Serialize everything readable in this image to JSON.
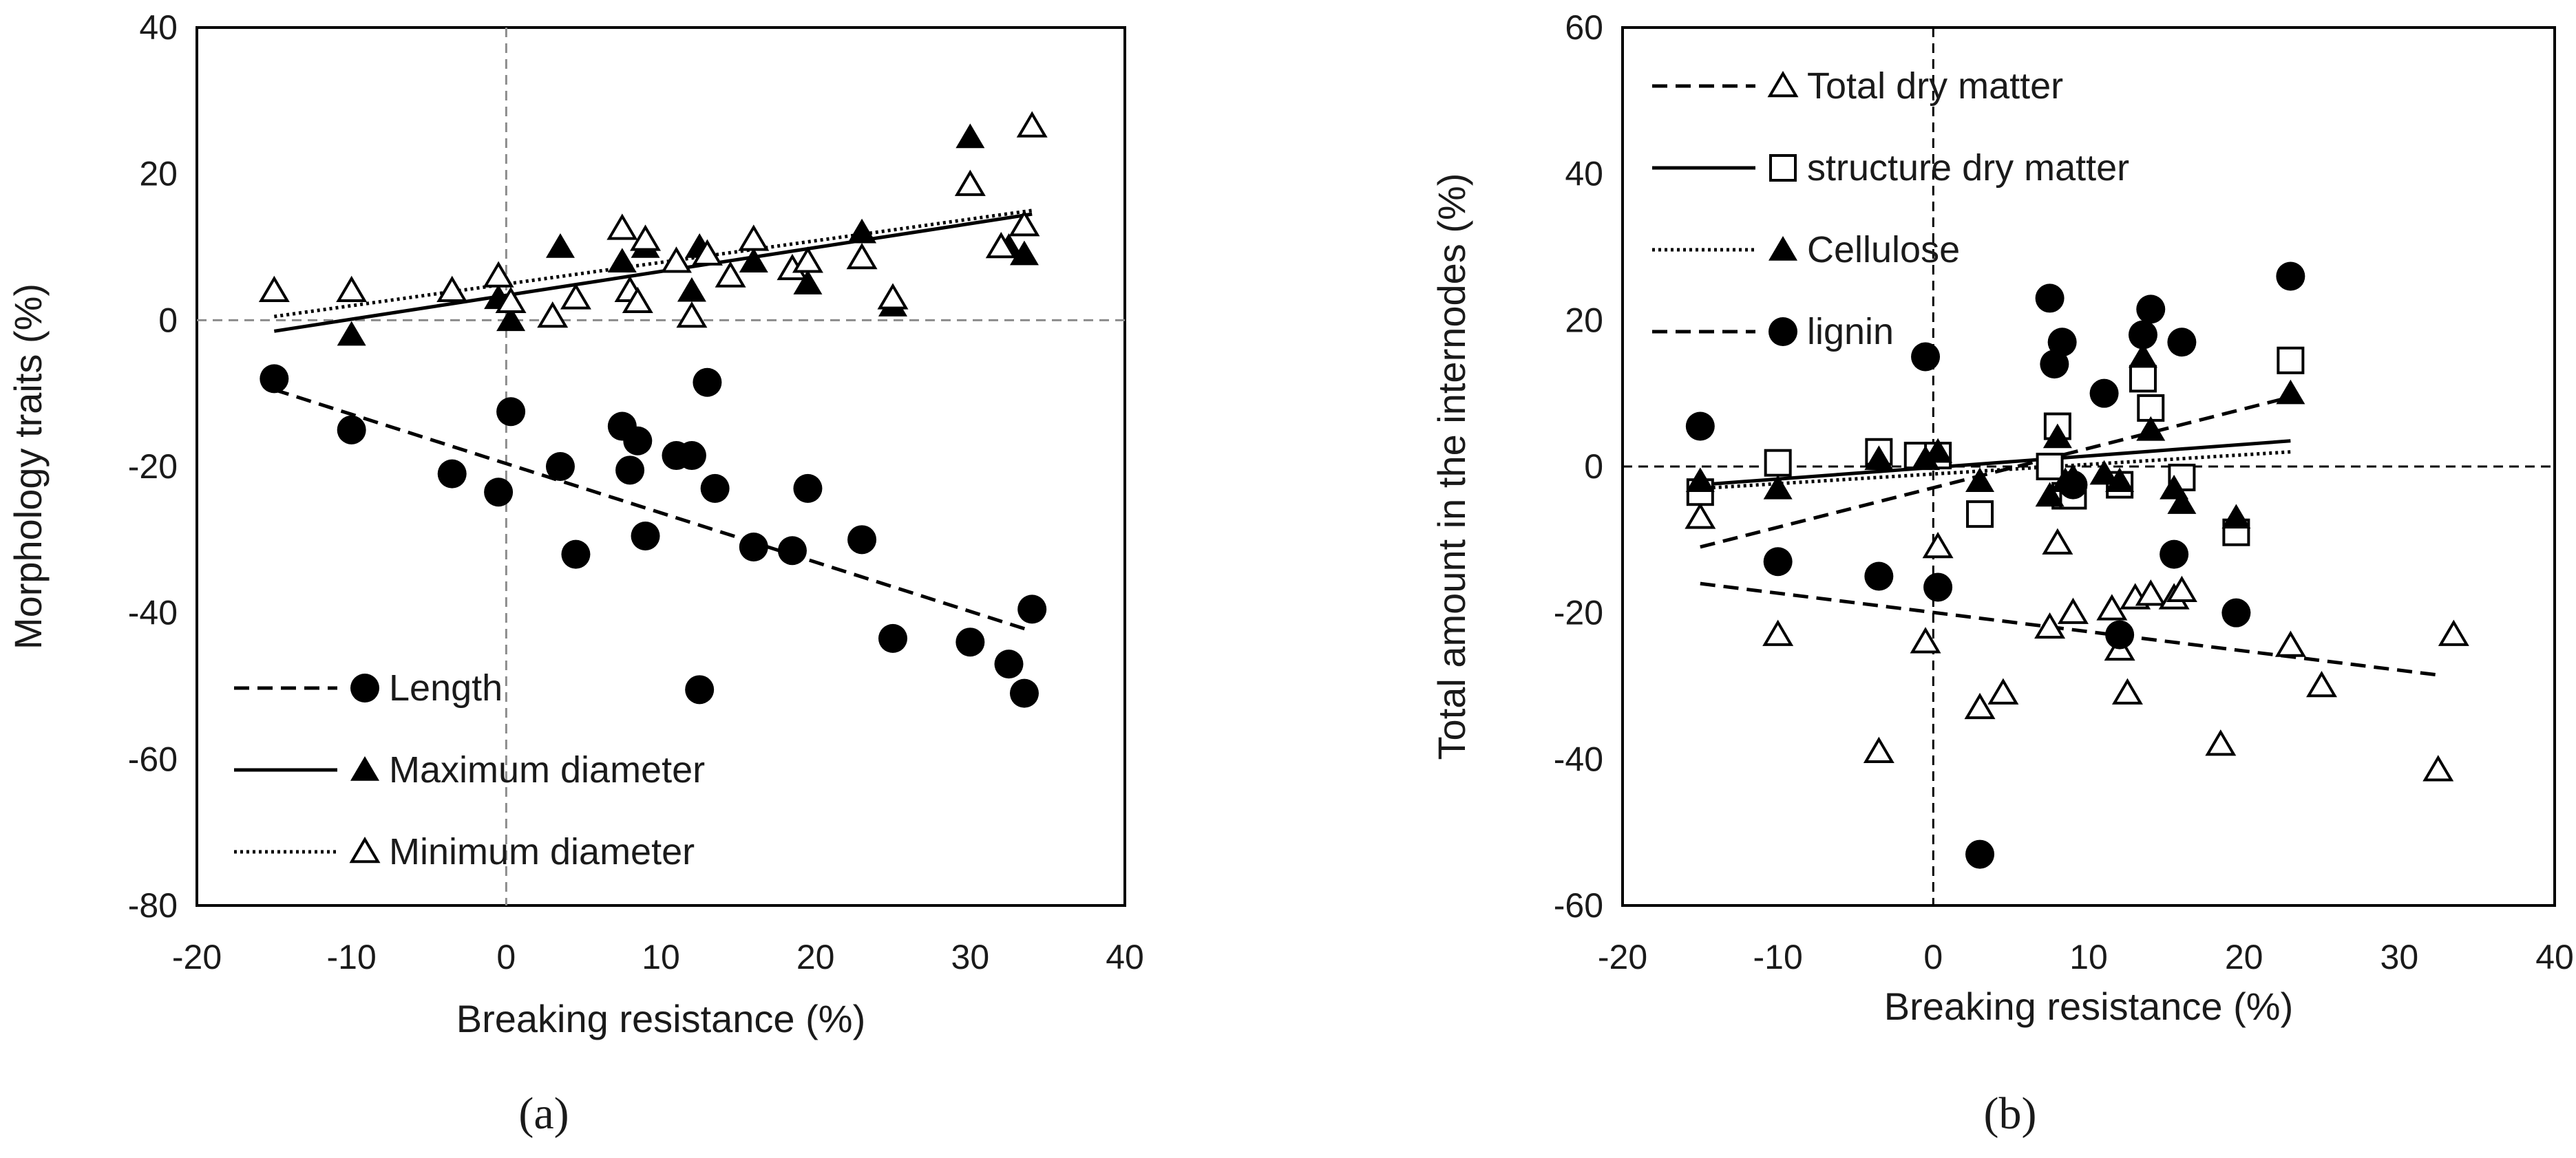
{
  "chart_data": [
    {
      "type": "scatter",
      "panel_label": "(a)",
      "xlabel": "Breaking resistance (%)",
      "ylabel": "Morphology traits (%)",
      "xlim": [
        -20,
        40
      ],
      "ylim": [
        -80,
        40
      ],
      "xticks": [
        "-20",
        "-10",
        "0",
        "10",
        "20",
        "30",
        "40"
      ],
      "yticks": [
        "-80",
        "-60",
        "-40",
        "-20",
        "0",
        "20",
        "40"
      ],
      "legend_position": "bottom-left",
      "series": [
        {
          "name": "Length",
          "marker": "circle-filled",
          "line": "dashed",
          "x": [
            -15,
            -10,
            -3.5,
            -0.5,
            0.3,
            3.5,
            4.5,
            7.5,
            8.0,
            8.5,
            9.0,
            11.0,
            12.0,
            12.5,
            13.0,
            13.5,
            16.0,
            18.5,
            19.5,
            23.0,
            25.0,
            30.0,
            32.5,
            33.5,
            34.0
          ],
          "y": [
            -8,
            -15,
            -21,
            -23.5,
            -12.5,
            -20,
            -32,
            -14.5,
            -20.5,
            -16.5,
            -29.5,
            -18.5,
            -18.5,
            -50.5,
            -8.5,
            -23,
            -31,
            -31.5,
            -23,
            -30,
            -43.5,
            -44,
            -47,
            -51,
            -39.5
          ],
          "trend": [
            [
              -15,
              -9.5
            ],
            [
              34,
              -42.5
            ]
          ]
        },
        {
          "name": "Maximum diameter",
          "marker": "triangle-filled",
          "line": "solid",
          "x": [
            -10,
            -3.5,
            -0.5,
            0.3,
            3.5,
            7.5,
            8.0,
            9.0,
            11.0,
            12.0,
            12.5,
            16.0,
            19.5,
            23.0,
            25.0,
            30.0,
            32.5,
            33.5
          ],
          "y": [
            -2,
            4,
            3,
            0,
            10,
            8,
            4,
            10,
            8,
            4,
            10,
            8,
            5,
            12,
            2,
            25,
            10,
            9
          ],
          "trend": [
            [
              -15,
              -1.5
            ],
            [
              34,
              14.5
            ]
          ]
        },
        {
          "name": "Minimum diameter",
          "marker": "triangle-open",
          "line": "dotted",
          "x": [
            -15,
            -10,
            -3.5,
            -0.5,
            0.3,
            3.0,
            4.5,
            7.5,
            8.0,
            8.5,
            9.0,
            11.0,
            12.0,
            13.0,
            14.5,
            16.0,
            18.5,
            19.5,
            23.0,
            25.0,
            30.0,
            32.0,
            33.5,
            34.0
          ],
          "y": [
            4,
            4,
            4,
            6,
            2.5,
            0.5,
            3,
            12.5,
            4,
            2.5,
            11,
            8,
            0.5,
            9,
            6,
            11,
            7,
            8,
            8.5,
            3,
            18.5,
            10,
            13,
            26.5
          ],
          "trend": [
            [
              -15,
              0.5
            ],
            [
              34,
              15
            ]
          ]
        }
      ]
    },
    {
      "type": "scatter",
      "panel_label": "(b)",
      "xlabel": "Breaking resistance (%)",
      "ylabel": "Total amount in the internodes (%)",
      "xlim": [
        -20,
        40
      ],
      "ylim": [
        -60,
        60
      ],
      "xticks": [
        "-20",
        "-10",
        "0",
        "10",
        "20",
        "30",
        "40"
      ],
      "yticks": [
        "-60",
        "-40",
        "-20",
        "0",
        "20",
        "40",
        "60"
      ],
      "legend_position": "top-left",
      "series": [
        {
          "name": "Total dry matter",
          "marker": "triangle-open",
          "line": "dashed",
          "x": [
            -15,
            -10,
            -3.5,
            -0.5,
            0.3,
            3.0,
            4.5,
            7.5,
            8.0,
            9.0,
            11.5,
            12.0,
            12.5,
            13.0,
            14.0,
            15.5,
            16.0,
            18.5,
            23.0,
            25.0,
            32.5,
            33.5
          ],
          "y": [
            -7,
            -23,
            -39,
            -24,
            -11,
            -33,
            -31,
            -22,
            -10.5,
            -20,
            -19.5,
            -25,
            -31,
            -18,
            -17.5,
            -18,
            -17,
            -38,
            -24.5,
            -30,
            -41.5,
            -23
          ],
          "trend": [
            [
              -15,
              -11
            ],
            [
              23,
              9.5
            ]
          ]
        },
        {
          "name": "structure dry matter",
          "marker": "square-open",
          "line": "solid",
          "x": [
            -15,
            -10,
            -3.5,
            -1.0,
            0.3,
            3.0,
            7.5,
            8.0,
            8.5,
            9.0,
            12.0,
            13.5,
            14.0,
            16.0,
            19.5,
            23.0
          ],
          "y": [
            -3.5,
            0.5,
            2,
            1.5,
            1.5,
            -6.5,
            0,
            5.5,
            -4,
            -4,
            -2.5,
            12,
            8,
            -1.5,
            -9,
            14.5
          ],
          "trend": [
            [
              -15,
              -2.5
            ],
            [
              23,
              3.5
            ]
          ]
        },
        {
          "name": "Cellulose",
          "marker": "triangle-filled",
          "line": "dotted",
          "x": [
            -15,
            -10,
            -3.5,
            -0.5,
            0.3,
            3.0,
            7.5,
            8.0,
            8.5,
            9.0,
            11.0,
            12.0,
            13.5,
            14.0,
            15.5,
            16.0,
            19.5,
            23.0
          ],
          "y": [
            -2,
            -3,
            1,
            1,
            2,
            -2,
            -4,
            4,
            -2,
            -1.5,
            -1,
            -2,
            15,
            5,
            -3,
            -5,
            -7,
            10
          ],
          "trend": [
            [
              -15,
              -3
            ],
            [
              23,
              2
            ]
          ]
        },
        {
          "name": "lignin",
          "marker": "circle-filled",
          "line": "dashed",
          "x": [
            -15,
            -10,
            -3.5,
            -0.5,
            0.3,
            3.0,
            7.5,
            7.8,
            8.3,
            9.0,
            11.0,
            12.0,
            13.5,
            14.0,
            15.5,
            16.0,
            19.5,
            23.0
          ],
          "y": [
            5.5,
            -13,
            -15,
            15,
            -16.5,
            -53,
            23,
            14,
            17,
            -2.5,
            10,
            -23,
            18,
            21.5,
            -12,
            17,
            -20,
            26
          ],
          "trend": [
            [
              -15,
              -16
            ],
            [
              32.5,
              -28.5
            ]
          ]
        }
      ]
    }
  ]
}
